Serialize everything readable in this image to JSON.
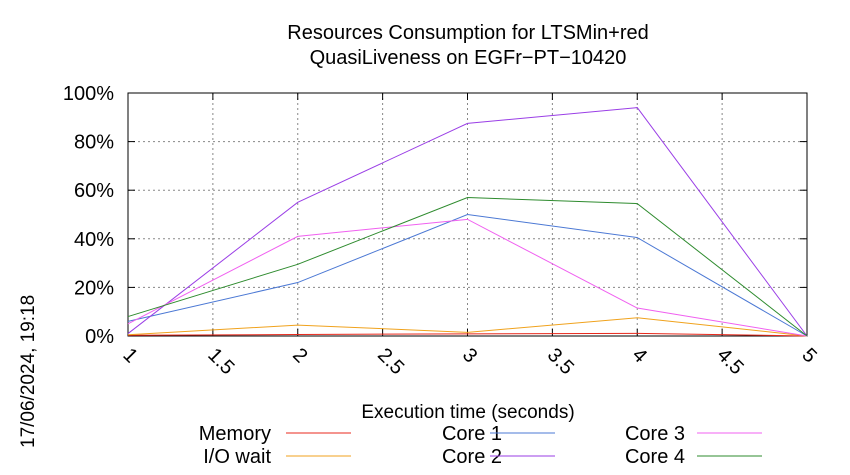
{
  "timestamp": "17/06/2024, 19:18",
  "chart_data": {
    "type": "line",
    "title_lines": [
      "Resources Consumption for LTSMin+red",
      "QuasiLiveness on EGFr−PT−10420"
    ],
    "xlabel": "Execution time (seconds)",
    "ylabel": "",
    "xlim": [
      1,
      5
    ],
    "ylim": [
      0,
      100
    ],
    "x_ticks": [
      1,
      1.5,
      2,
      2.5,
      3,
      3.5,
      4,
      4.5,
      5
    ],
    "x_tick_labels": [
      "1",
      "1.5",
      "2",
      "2.5",
      "3",
      "3.5",
      "4",
      "4.5",
      "5"
    ],
    "y_ticks": [
      0,
      20,
      40,
      60,
      80,
      100
    ],
    "y_tick_labels": [
      "0%",
      "20%",
      "40%",
      "60%",
      "80%",
      "100%"
    ],
    "grid": true,
    "legend_position": "bottom",
    "x": [
      1,
      2,
      3,
      4,
      5
    ],
    "series": [
      {
        "name": "Memory",
        "color": "#e8291c",
        "values": [
          0.3,
          0.6,
          0.9,
          1.1,
          0
        ]
      },
      {
        "name": "I/O wait",
        "color": "#f0a21c",
        "values": [
          0.5,
          4.5,
          1.5,
          7.5,
          0
        ]
      },
      {
        "name": "Core 1",
        "color": "#4b78d4",
        "values": [
          6,
          22,
          50,
          40.5,
          0
        ]
      },
      {
        "name": "Core 2",
        "color": "#9a3ee6",
        "values": [
          1,
          55,
          87.5,
          94,
          0
        ]
      },
      {
        "name": "Core 3",
        "color": "#f060f0",
        "values": [
          5,
          41,
          48,
          11.5,
          0
        ]
      },
      {
        "name": "Core 4",
        "color": "#2e8b2e",
        "values": [
          8,
          29.5,
          57,
          54.5,
          0
        ]
      }
    ]
  }
}
